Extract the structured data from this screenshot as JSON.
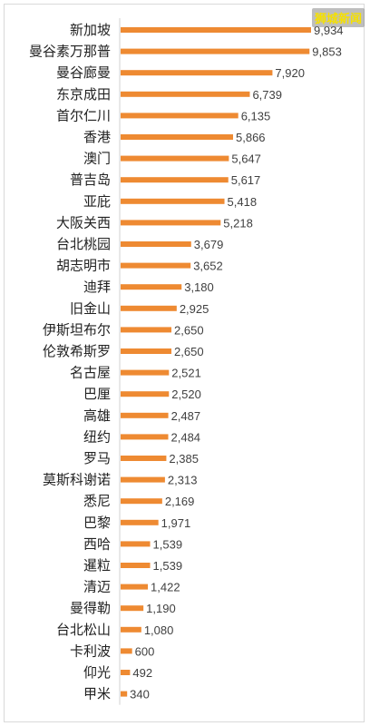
{
  "watermark": "狮城新闻",
  "colors": {
    "bar": "#ee8a32",
    "axis": "#d0d0d0",
    "text": "#222222",
    "value": "#404040"
  },
  "chart_data": {
    "type": "bar",
    "orientation": "horizontal",
    "grid": false,
    "legend": "none",
    "categories": [
      "新加坡",
      "曼谷素万那普",
      "曼谷廊曼",
      "东京成田",
      "首尔仁川",
      "香港",
      "澳门",
      "普吉岛",
      "亚庇",
      "大阪关西",
      "台北桃园",
      "胡志明市",
      "迪拜",
      "旧金山",
      "伊斯坦布尔",
      "伦敦希斯罗",
      "名古屋",
      "巴厘",
      "高雄",
      "纽约",
      "罗马",
      "莫斯科谢诺",
      "悉尼",
      "巴黎",
      "西哈",
      "暹粒",
      "清迈",
      "曼得勒",
      "台北松山",
      "卡利波",
      "仰光",
      "甲米"
    ],
    "values": [
      9934,
      9853,
      7920,
      6739,
      6135,
      5866,
      5647,
      5617,
      5418,
      5218,
      3679,
      3652,
      3180,
      2925,
      2650,
      2650,
      2521,
      2520,
      2487,
      2484,
      2385,
      2313,
      2169,
      1971,
      1539,
      1539,
      1422,
      1190,
      1080,
      600,
      492,
      340
    ],
    "value_labels": [
      "9,934",
      "9,853",
      "7,920",
      "6,739",
      "6,135",
      "5,866",
      "5,647",
      "5,617",
      "5,418",
      "5,218",
      "3,679",
      "3,652",
      "3,180",
      "2,925",
      "2,650",
      "2,650",
      "2,521",
      "2,520",
      "2,487",
      "2,484",
      "2,385",
      "2,313",
      "2,169",
      "1,971",
      "1,539",
      "1,539",
      "1,422",
      "1,190",
      "1,080",
      "600",
      "492",
      "340"
    ],
    "xlim": [
      0,
      10000
    ]
  }
}
